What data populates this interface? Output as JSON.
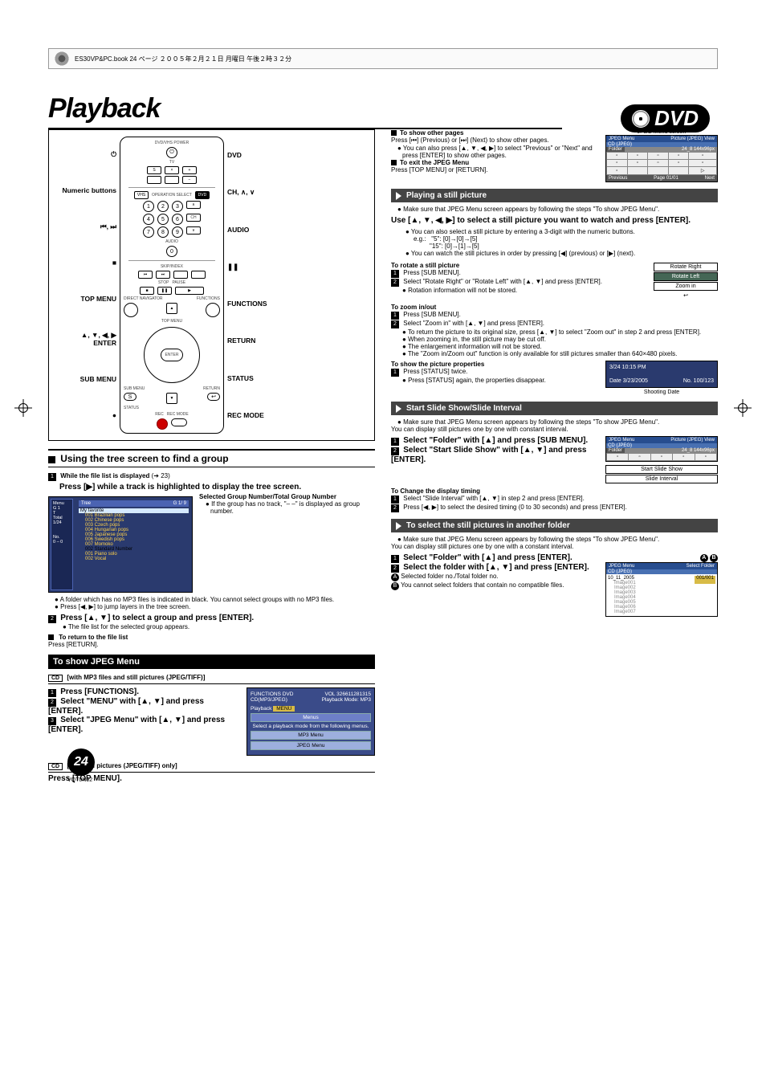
{
  "header_strip": "ES30VP&PC.book  24 ページ  ２００５年２月２１日  月曜日  午後２時３２分",
  "title": "Playback",
  "dvd_badge": "DVD",
  "remote": {
    "left": [
      "⏻",
      "Numeric buttons",
      "⏮, ⏭",
      "■",
      "TOP MENU",
      "▲, ▼, ◀, ▶\nENTER",
      "SUB MENU",
      "●"
    ],
    "right": [
      "DVD",
      "CH, ∧, ∨",
      "AUDIO",
      "❚❚",
      "FUNCTIONS",
      "RETURN",
      "STATUS",
      "REC MODE"
    ],
    "tiny_top": "DVD/VHS POWER",
    "tiny_tv": "TV",
    "vhs": "VHS",
    "dvd": "DVD",
    "numbers": [
      "1",
      "2",
      "3",
      "4",
      "5",
      "6",
      "7",
      "8",
      "9",
      "0"
    ],
    "ch": "CH",
    "audio": "AUDIO",
    "skip": "SKIP/INDEX",
    "timeslip": "TIME SLIP",
    "stop": "STOP",
    "pause": "PAUSE",
    "direct": "DIRECT NAVIGATOR",
    "functions": "FUNCTIONS",
    "topmenu": "TOP MENU",
    "enter": "ENTER",
    "submenu": "SUB MENU",
    "return": "RETURN",
    "status_row": "STATUS",
    "rec": "REC",
    "recmode": "REC MODE"
  },
  "tree_section": {
    "heading": "Using the tree screen to find a group",
    "step1_bold": "While the file list is displayed",
    "step1_ref": "(➔ 23)",
    "step1_action": "Press [▶] while a track is highlighted to display the tree screen.",
    "info_title": "Selected Group Number/Total Group Number",
    "info_bullet": "If the group has no track, \"– –\" is displayed as group number.",
    "sidebar": {
      "menu": "Menu",
      "g": "G 1",
      "t": "T",
      "total": "Total",
      "count": "1/24",
      "no": "No.",
      "range": "0 – 0"
    },
    "tree_header": "Tree",
    "counter": "G    1/     9",
    "root": "My favorite",
    "items": [
      {
        "t": "001 Brazilian pops",
        "c": "y"
      },
      {
        "t": "002 Chinese pops",
        "c": "y"
      },
      {
        "t": "003 Czech pops",
        "c": "y"
      },
      {
        "t": "004 Hungarian pops",
        "c": "y"
      },
      {
        "t": "005 Japanese pops",
        "c": "y"
      },
      {
        "t": "006 Swedish pops",
        "c": "y"
      },
      {
        "t": "007 Momoko",
        "c": "y"
      },
      {
        "t": "002 Standard Number",
        "c": "blk"
      },
      {
        "t": "001 Piano solo",
        "c": "y"
      },
      {
        "t": "002 Vocal",
        "c": "y"
      }
    ],
    "note1": "A folder which has no MP3 files is indicated in black. You cannot select groups with no MP3 files.",
    "note2": "Press [◀, ▶] to jump layers in the tree screen.",
    "step2": "Press [▲, ▼] to select a group and press [ENTER].",
    "step2_note": "The file list for the selected group appears.",
    "return_title": "To return to the file list",
    "return_body": "Press [RETURN]."
  },
  "jpeg_menu_section": {
    "heading": "To show JPEG Menu",
    "sub1": "[with MP3 files and still pictures (JPEG/TIFF)]",
    "step1": "Press [FUNCTIONS].",
    "step2": "Select \"MENU\" with [▲, ▼] and press [ENTER].",
    "step3": "Select \"JPEG Menu\" with [▲, ▼] and press [ENTER].",
    "panel": {
      "top": "FUNCTIONS  DVD",
      "sub": "CD(MP3/JPEG)",
      "vol": "VOL 326611281315",
      "mode": "Playback Mode: MP3",
      "playback": "Playback",
      "menu": "MENU",
      "bar": "Menus",
      "desc": "Select a playback mode from the following menus.",
      "opt1": "MP3 Menu",
      "opt2": "JPEG Menu"
    },
    "sub2": "[with still pictures (JPEG/TIFF) only]",
    "topmenu": "Press [TOP MENU]."
  },
  "other_pages": {
    "title": "To show other pages",
    "body1": "Press [⏮] (Previous) or [⏭] (Next) to show other pages.",
    "bullet": "You can also press [▲, ▼, ◀, ▶] to select \"Previous\" or \"Next\" and press [ENTER] to show other pages.",
    "exit_title": "To exit the JPEG Menu",
    "exit_body": "Press [TOP MENU] or [RETURN]."
  },
  "jpeg_screen": {
    "caption": "JPEG Menu screen",
    "header_l": "JPEG Menu",
    "header_r": "Picture (JPEG) View",
    "cd": "CD (JPEG)",
    "folder": "Folder",
    "folder_info": "24_8   144x96px",
    "prev": "Previous",
    "page": "Page 01/01",
    "next": "Next"
  },
  "playing_still": {
    "heading": "Playing a still picture",
    "pre": "Make sure that JPEG Menu screen appears by following the steps \"To show JPEG Menu\".",
    "main": "Use [▲, ▼, ◀, ▶] to select a still picture you want to watch and press [ENTER].",
    "b1": "You can also select a still picture by entering a 3-digit with the numeric buttons.",
    "eg_label": "e.g.:",
    "eg1": "\"5\":   [0]→[0]→[5]",
    "eg2": "\"15\":  [0]→[1]→[5]",
    "b2": "You can watch the still pictures in order by pressing [◀] (previous) or [▶] (next).",
    "rotate_title": "To rotate a still picture",
    "rotate1": "Press [SUB MENU].",
    "rotate2": "Select \"Rotate Right\" or \"Rotate Left\" with [▲, ▼] and press [ENTER].",
    "rotate_note": "Rotation information will not be stored.",
    "rotate_menu": [
      "Rotate Right",
      "Rotate Left",
      "Zoom in"
    ],
    "zoom_title": "To zoom in/out",
    "zoom1": "Press [SUB MENU].",
    "zoom2": "Select \"Zoom in\" with [▲, ▼] and press [ENTER].",
    "zoom_b1": "To return the picture to its original size, press [▲, ▼] to select \"Zoom out\" in step 2 and press [ENTER].",
    "zoom_b2": "When zooming in, the still picture may be cut off.",
    "zoom_b3": "The enlargement information will not be stored.",
    "zoom_b4": "The \"Zoom in/Zoom out\" function is only available for still pictures smaller than 640×480 pixels.",
    "props_title": "To show the picture properties",
    "props1": "Press [STATUS] twice.",
    "props_note": "Press [STATUS] again, the properties disappear.",
    "status": {
      "time": "3/24  10:15 PM",
      "date": "Date  3/23/2005",
      "no": "No. 100/123",
      "caption": "Shooting Date"
    }
  },
  "slide": {
    "heading": "Start Slide Show/Slide Interval",
    "pre": "Make sure that JPEG Menu screen appears by following the steps \"To show JPEG Menu\".",
    "desc": "You can display still pictures one by one with constant interval.",
    "step1": "Select \"Folder\" with [▲] and press [SUB MENU].",
    "step2": "Select \"Start Slide Show\" with [▲, ▼] and press [ENTER].",
    "panel": {
      "header_l": "JPEG Menu",
      "header_r": "Picture (JPEG) View",
      "cd": "CD (JPEG)",
      "folder": "Folder",
      "folder_info": "24_8  144x96px",
      "opt1": "Start Slide Show",
      "opt2": "Slide Interval"
    },
    "change_title": "To Change the display timing",
    "change1": "Select \"Slide Interval\" with [▲, ▼] in step 2 and press [ENTER].",
    "change2": "Press [◀, ▶] to select the desired timing (0 to 30 seconds) and press [ENTER]."
  },
  "select_folder": {
    "heading": "To select the still pictures in another folder",
    "pre": "Make sure that JPEG Menu screen appears by following the steps \"To show JPEG Menu\".",
    "desc": "You can display still pictures one by one with a constant interval.",
    "step1": "Select \"Folder\" with [▲] and press [ENTER].",
    "step2": "Select the folder with [▲, ▼] and press [ENTER].",
    "A": "Selected folder no./Total folder no.",
    "B": "You cannot select folders that contain no compatible files.",
    "panel": {
      "header_l": "JPEG Menu",
      "header_r": "Select Folder",
      "cd": "CD (JPEG)",
      "counter": "001/001",
      "root": "10_11_2005",
      "items": [
        "Image001",
        "Image002",
        "Image003",
        "Image004",
        "Image005",
        "Image006",
        "Image007"
      ],
      "labels": "A B"
    }
  },
  "page_number": "24",
  "doc_code": "VQT0N92"
}
